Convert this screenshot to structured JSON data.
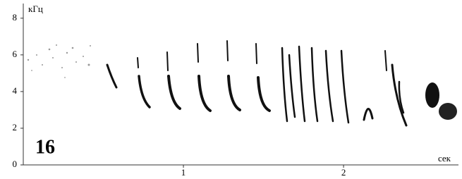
{
  "chart_data": {
    "type": "spectrogram",
    "panel_label": "16",
    "xlabel": "сек",
    "ylabel": "кГц",
    "xlim": [
      0,
      2.7
    ],
    "xticks": [
      1,
      2
    ],
    "ylim": [
      0,
      8.8
    ],
    "yticks": [
      0,
      2,
      4,
      6,
      8
    ]
  }
}
